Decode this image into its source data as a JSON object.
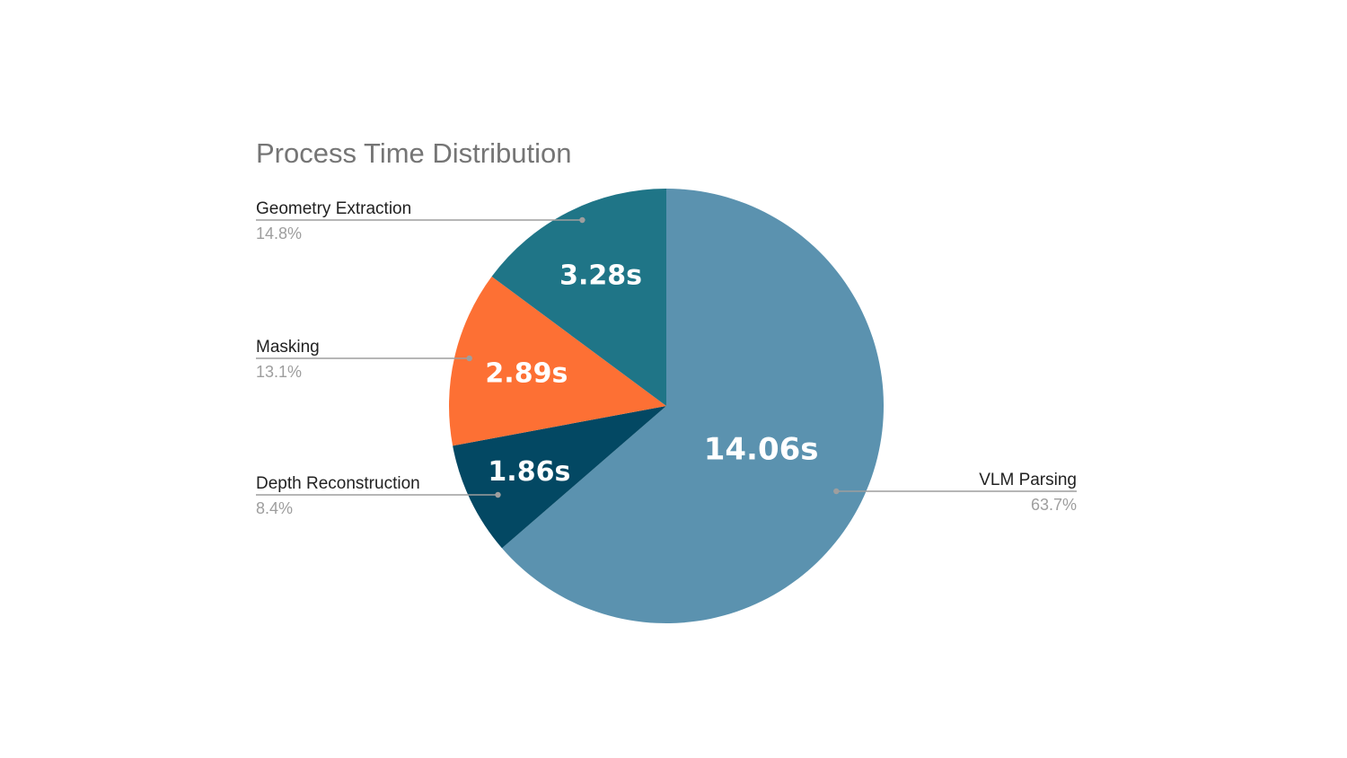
{
  "chart_data": {
    "type": "pie",
    "title": "Process Time Distribution",
    "start_angle_deg": 0,
    "direction": "clockwise",
    "slices": [
      {
        "label": "VLM Parsing",
        "value": 14.06,
        "value_label": "14.06s",
        "percent_label": "63.7%",
        "color": "#5b92af"
      },
      {
        "label": "Depth Reconstruction",
        "value": 1.86,
        "value_label": "1.86s",
        "percent_label": "8.4%",
        "color": "#034863"
      },
      {
        "label": "Masking",
        "value": 2.89,
        "value_label": "2.89s",
        "percent_label": "13.1%",
        "color": "#fd7034"
      },
      {
        "label": "Geometry Extraction",
        "value": 3.28,
        "value_label": "3.28s",
        "percent_label": "14.8%",
        "color": "#1f7587"
      }
    ]
  }
}
